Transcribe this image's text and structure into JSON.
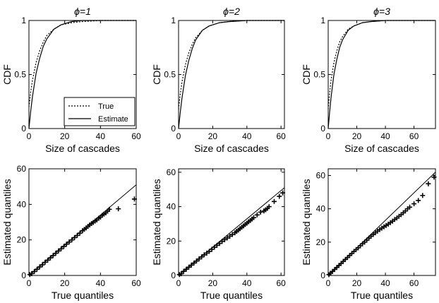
{
  "chart_data": [
    {
      "type": "line",
      "title": "ϕ=1",
      "xlabel": "Size of cascades",
      "ylabel": "CDF",
      "xlim": [
        0,
        60
      ],
      "ylim": [
        0,
        1
      ],
      "xticks": [
        "0",
        "20",
        "40",
        "60"
      ],
      "yticks": [
        "0",
        "0.5",
        "1"
      ],
      "legend": {
        "placement": "bottom-right",
        "entries": [
          "True",
          "Estimate"
        ]
      },
      "series": [
        {
          "name": "True",
          "style": "dotted",
          "x": [
            0,
            1,
            2,
            4,
            6,
            8,
            10,
            14,
            18,
            24,
            30,
            40,
            60
          ],
          "y": [
            0.2,
            0.34,
            0.45,
            0.61,
            0.72,
            0.8,
            0.86,
            0.92,
            0.96,
            0.98,
            0.99,
            1.0,
            1.0
          ]
        },
        {
          "name": "Estimate",
          "style": "solid",
          "x": [
            0,
            1,
            2,
            4,
            6,
            8,
            10,
            14,
            18,
            24,
            30,
            40,
            60
          ],
          "y": [
            0.0,
            0.16,
            0.3,
            0.51,
            0.65,
            0.76,
            0.83,
            0.92,
            0.96,
            0.99,
            1.0,
            1.0,
            1.0
          ]
        }
      ]
    },
    {
      "type": "line",
      "title": "ϕ=2",
      "xlabel": "Size of cascades",
      "ylabel": "CDF",
      "xlim": [
        0,
        62
      ],
      "ylim": [
        0,
        1
      ],
      "xticks": [
        "0",
        "20",
        "40",
        "60"
      ],
      "yticks": [
        "0",
        "0.5",
        "1"
      ],
      "series": [
        {
          "name": "True",
          "style": "dotted",
          "x": [
            0,
            1,
            2,
            4,
            6,
            8,
            10,
            14,
            18,
            24,
            30,
            40,
            62
          ],
          "y": [
            0.18,
            0.32,
            0.43,
            0.59,
            0.7,
            0.78,
            0.84,
            0.91,
            0.95,
            0.98,
            0.99,
            1.0,
            1.0
          ]
        },
        {
          "name": "Estimate",
          "style": "solid",
          "x": [
            0,
            1,
            2,
            4,
            6,
            8,
            10,
            14,
            18,
            24,
            30,
            40,
            62
          ],
          "y": [
            0.0,
            0.15,
            0.28,
            0.49,
            0.63,
            0.74,
            0.82,
            0.91,
            0.95,
            0.98,
            0.99,
            1.0,
            1.0
          ]
        }
      ]
    },
    {
      "type": "line",
      "title": "ϕ=3",
      "xlabel": "Size of cascades",
      "ylabel": "CDF",
      "xlim": [
        0,
        75
      ],
      "ylim": [
        0,
        1
      ],
      "xticks": [
        "0",
        "20",
        "40",
        "60"
      ],
      "yticks": [
        "0",
        "0.5",
        "1"
      ],
      "series": [
        {
          "name": "True",
          "style": "dotted",
          "x": [
            0,
            1,
            2,
            4,
            6,
            8,
            10,
            14,
            18,
            24,
            30,
            40,
            75
          ],
          "y": [
            0.18,
            0.33,
            0.45,
            0.61,
            0.72,
            0.8,
            0.85,
            0.92,
            0.95,
            0.98,
            0.99,
            1.0,
            1.0
          ]
        },
        {
          "name": "Estimate",
          "style": "solid",
          "x": [
            0,
            1,
            2,
            4,
            6,
            8,
            10,
            14,
            18,
            24,
            30,
            40,
            75
          ],
          "y": [
            0.0,
            0.15,
            0.29,
            0.5,
            0.64,
            0.75,
            0.82,
            0.91,
            0.95,
            0.98,
            0.99,
            1.0,
            1.0
          ]
        }
      ]
    },
    {
      "type": "scatter",
      "title": "",
      "xlabel": "True quantiles",
      "ylabel": "Estimated quantiles",
      "xlim": [
        0,
        60
      ],
      "ylim": [
        0,
        60
      ],
      "xticks": [
        "0",
        "20",
        "40",
        "60"
      ],
      "yticks": [
        "0",
        "20",
        "40",
        "60"
      ],
      "reference_line": {
        "x": [
          0,
          60
        ],
        "y": [
          0,
          51
        ]
      },
      "series": [
        {
          "name": "quantiles",
          "marker": "+",
          "x": [
            0.5,
            1.5,
            3,
            4.5,
            6,
            7.5,
            9,
            10.5,
            12,
            13.5,
            15,
            16.5,
            18,
            19.5,
            21,
            22.5,
            24,
            25.5,
            27,
            28.5,
            30,
            31,
            32,
            33,
            34,
            35,
            36,
            37,
            38,
            39,
            40,
            41,
            42,
            43,
            44,
            45,
            50,
            59
          ],
          "y": [
            0.5,
            1,
            2.2,
            3.5,
            4.8,
            6,
            7.4,
            8.6,
            9.9,
            11.2,
            12.5,
            13.8,
            15,
            16.3,
            17.6,
            18.8,
            20,
            21.3,
            22.5,
            23.8,
            25.2,
            26,
            26.7,
            27.6,
            28.4,
            29.2,
            29.8,
            30.6,
            31.2,
            32.2,
            32.8,
            33.8,
            34.5,
            35.2,
            36.2,
            37.2,
            37.5,
            43
          ]
        }
      ]
    },
    {
      "type": "scatter",
      "title": "",
      "xlabel": "True quantiles",
      "ylabel": "Estimated quantiles",
      "xlim": [
        0,
        62
      ],
      "ylim": [
        0,
        62
      ],
      "xticks": [
        "0",
        "20",
        "40",
        "60"
      ],
      "yticks": [
        "0",
        "20",
        "40",
        "60"
      ],
      "reference_line": {
        "x": [
          0,
          62
        ],
        "y": [
          0,
          51
        ]
      },
      "series": [
        {
          "name": "quantiles",
          "marker": "+",
          "x": [
            0.5,
            1.5,
            3,
            4.5,
            6,
            7.5,
            9,
            10.5,
            12,
            13.5,
            15,
            16.5,
            18,
            19.5,
            21,
            22.5,
            24,
            25.5,
            27,
            28.5,
            30,
            31.5,
            33,
            34,
            35,
            36,
            37,
            38,
            39,
            40,
            41,
            42,
            43,
            44,
            46,
            48,
            50,
            51,
            52,
            53,
            56,
            59,
            61
          ],
          "y": [
            0.5,
            1,
            2.4,
            3.6,
            4.8,
            6,
            7.2,
            8.4,
            9.6,
            10.8,
            12,
            13,
            14,
            15.2,
            16.4,
            17.5,
            18.6,
            19.8,
            20.8,
            21.8,
            22.8,
            23.8,
            24.8,
            25.6,
            26.4,
            27.2,
            28,
            28.8,
            29.6,
            30.4,
            31.2,
            32,
            32.8,
            33.6,
            35.2,
            36.8,
            37.5,
            38.2,
            39,
            40,
            43,
            46,
            48
          ]
        }
      ]
    },
    {
      "type": "scatter",
      "title": "",
      "xlabel": "True quantiles",
      "ylabel": "Estimated quantiles",
      "xlim": [
        0,
        75
      ],
      "ylim": [
        0,
        64
      ],
      "xticks": [
        "0",
        "20",
        "40",
        "60"
      ],
      "yticks": [
        "0",
        "20",
        "40",
        "60"
      ],
      "reference_line": {
        "x": [
          0,
          75
        ],
        "y": [
          0,
          62
        ]
      },
      "series": [
        {
          "name": "quantiles",
          "marker": "+",
          "x": [
            0.5,
            1.5,
            3,
            4.5,
            6,
            7.5,
            9,
            10.5,
            12,
            13.5,
            15,
            16.5,
            18,
            19.5,
            21,
            22.5,
            24,
            25.5,
            27,
            28.5,
            30,
            31.5,
            33,
            34.5,
            36,
            37.5,
            39,
            40.5,
            42,
            43.5,
            45,
            46.5,
            48,
            49.5,
            51,
            52.5,
            54,
            55.5,
            57,
            60,
            63,
            66,
            70,
            74
          ],
          "y": [
            0.5,
            1.3,
            2.4,
            3.6,
            4.8,
            6,
            7.2,
            8.4,
            9.6,
            10.8,
            12,
            13.2,
            14.4,
            15.5,
            16.6,
            17.8,
            19,
            20,
            21.2,
            22.4,
            23.5,
            24.6,
            25.6,
            26.6,
            27.5,
            28.4,
            29.2,
            30,
            30.8,
            31.7,
            32.6,
            33.6,
            34.5,
            35.5,
            36.5,
            37.6,
            38.7,
            40,
            41,
            43,
            45,
            48,
            55,
            59
          ]
        }
      ]
    }
  ]
}
